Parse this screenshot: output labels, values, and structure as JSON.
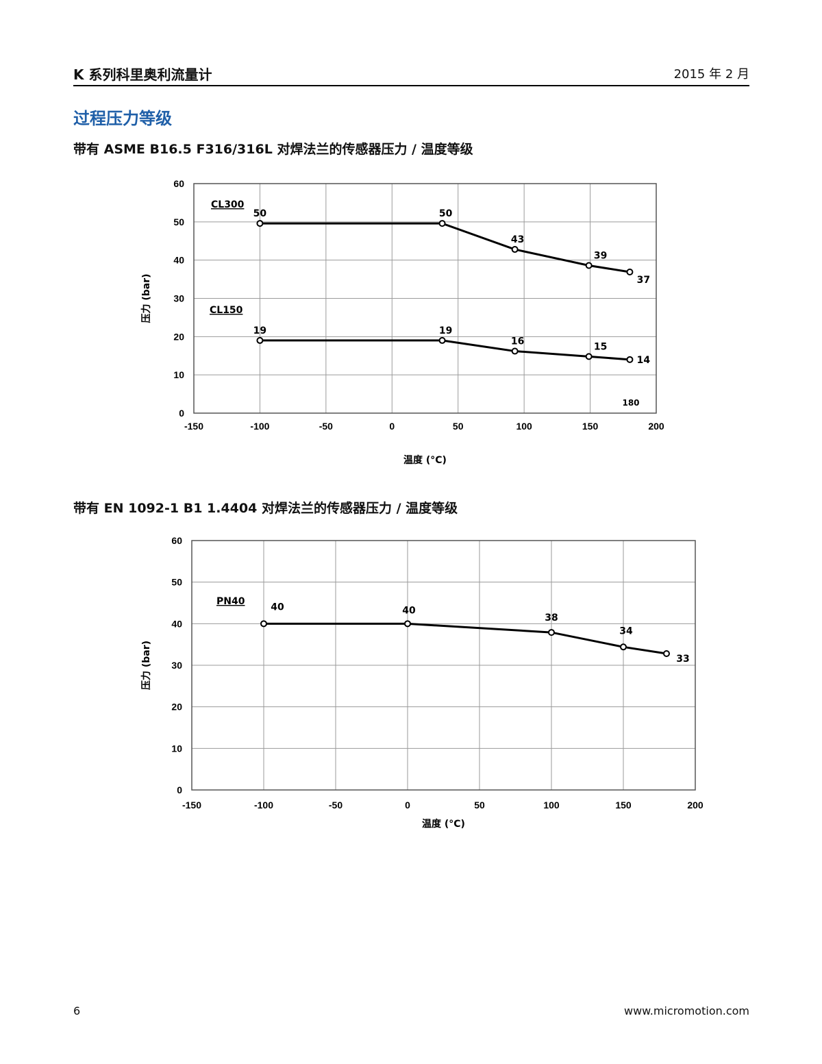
{
  "header": {
    "doc_title": "K 系列科里奥利流量计",
    "date": "2015 年 2 月"
  },
  "section_title": "过程压力等级",
  "charts": [
    {
      "subtitle": "带有 ASME B16.5 F316/316L 对焊法兰的传感器压力 / 温度等级",
      "extra_label": "180"
    },
    {
      "subtitle": "带有 EN 1092-1 B1 1.4404 对焊法兰的传感器压力 / 温度等级"
    }
  ],
  "chart_data": [
    {
      "type": "line",
      "xlabel": "温度 (°C)",
      "ylabel": "压力 (bar)",
      "xlim": [
        -150,
        200
      ],
      "ylim": [
        0,
        60
      ],
      "xticks": [
        -150,
        -100,
        -50,
        0,
        50,
        100,
        150,
        200
      ],
      "yticks": [
        0,
        10,
        20,
        30,
        40,
        50,
        60
      ],
      "grid": true,
      "series": [
        {
          "name": "CL300",
          "x": [
            -100,
            38,
            93,
            149,
            180
          ],
          "y": [
            49.6,
            49.6,
            42.8,
            38.6,
            36.9
          ],
          "labels": [
            "50",
            "50",
            "43",
            "39",
            "37"
          ]
        },
        {
          "name": "CL150",
          "x": [
            -100,
            38,
            93,
            149,
            180
          ],
          "y": [
            19,
            19,
            16.2,
            14.8,
            14
          ],
          "labels": [
            "19",
            "19",
            "16",
            "15",
            "14"
          ]
        }
      ]
    },
    {
      "type": "line",
      "xlabel": "温度 (°C)",
      "ylabel": "压力 (bar)",
      "xlim": [
        -150,
        200
      ],
      "ylim": [
        0,
        60
      ],
      "xticks": [
        -150,
        -100,
        -50,
        0,
        50,
        100,
        150,
        200
      ],
      "yticks": [
        0,
        10,
        20,
        30,
        40,
        50,
        60
      ],
      "grid": true,
      "series": [
        {
          "name": "PN40",
          "x": [
            -100,
            0,
            100,
            150,
            180
          ],
          "y": [
            40,
            40,
            37.9,
            34.4,
            32.8
          ],
          "labels": [
            "40",
            "40",
            "38",
            "34",
            "33"
          ]
        }
      ]
    }
  ],
  "footer": {
    "page_number": "6",
    "website": "www.micromotion.com"
  }
}
